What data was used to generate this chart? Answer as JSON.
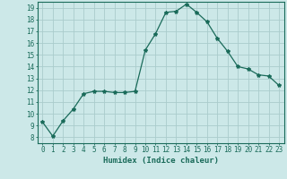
{
  "x": [
    0,
    1,
    2,
    3,
    4,
    5,
    6,
    7,
    8,
    9,
    10,
    11,
    12,
    13,
    14,
    15,
    16,
    17,
    18,
    19,
    20,
    21,
    22,
    23
  ],
  "y": [
    9.3,
    8.1,
    9.4,
    10.4,
    11.7,
    11.9,
    11.9,
    11.8,
    11.8,
    11.9,
    15.4,
    16.8,
    18.6,
    18.7,
    19.3,
    18.6,
    17.8,
    16.4,
    15.3,
    14.0,
    13.8,
    13.3,
    13.2,
    12.4
  ],
  "line_color": "#1a6b5a",
  "marker": "*",
  "marker_size": 3,
  "bg_color": "#cce8e8",
  "grid_color": "#aacccc",
  "xlabel": "Humidex (Indice chaleur)",
  "xlim": [
    -0.5,
    23.5
  ],
  "ylim": [
    7.5,
    19.5
  ],
  "yticks": [
    8,
    9,
    10,
    11,
    12,
    13,
    14,
    15,
    16,
    17,
    18,
    19
  ],
  "xticks": [
    0,
    1,
    2,
    3,
    4,
    5,
    6,
    7,
    8,
    9,
    10,
    11,
    12,
    13,
    14,
    15,
    16,
    17,
    18,
    19,
    20,
    21,
    22,
    23
  ],
  "tick_color": "#1a6b5a",
  "label_color": "#1a6b5a",
  "spine_color": "#1a6b5a",
  "tick_fontsize": 5.5,
  "xlabel_fontsize": 6.5
}
